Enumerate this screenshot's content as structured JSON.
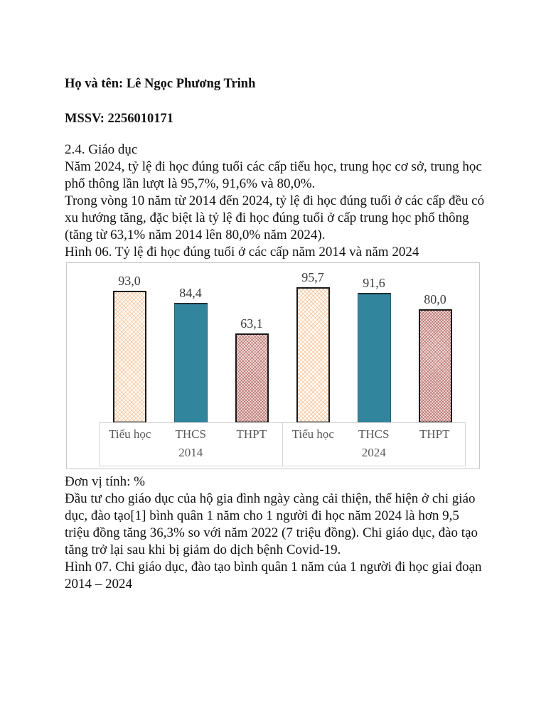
{
  "document": {
    "student_name_line": "Họ và tên: Lê Ngọc Phương Trinh",
    "student_id_line": "MSSV: 2256010171",
    "section_heading": "2.4. Giáo dục",
    "paragraph_1": "Năm 2024, tỷ lệ đi học đúng tuổi các cấp tiểu học, trung học cơ sở, trung học phổ thông lần lượt là 95,7%, 91,6% và 80,0%.",
    "paragraph_2": "Trong vòng 10 năm từ 2014 đến 2024, tỷ lệ đi học đúng tuổi ở các cấp đều có xu hướng tăng, đặc biệt là tỷ lệ đi học đúng tuổi ở cấp trung học phổ thông (tăng từ 63,1% năm 2014 lên 80,0% năm 2024).",
    "figure_06_caption": "Hình 06. Tỷ lệ đi học đúng tuổi ở các cấp năm 2014 và năm 2024",
    "unit_note": "Đơn vị tính: %",
    "paragraph_3": "Đầu tư cho giáo dục của hộ gia đình ngày càng cải thiện, thể hiện ở chi giáo dục, đào tạo[1] bình quân 1 năm cho 1 người đi học năm 2024 là hơn 9,5 triệu đồng tăng 36,3% so với năm 2022 (7 triệu đồng). Chi giáo dục, đào tạo tăng trở lại sau khi bị giảm do dịch bệnh Covid-19.",
    "figure_07_caption": "Hình 07. Chi giáo dục, đào tạo bình quân 1 năm của 1 người đi học giai đoạn 2014 – 2024"
  },
  "chart_data": {
    "type": "bar",
    "title": "Hình 06. Tỷ lệ đi học đúng tuổi ở các cấp năm 2014 và năm 2024",
    "unit": "%",
    "ylim": [
      0,
      100
    ],
    "grid": false,
    "legend": "none",
    "groups": [
      {
        "year": "2014",
        "categories": [
          "Tiểu học",
          "THCS",
          "THPT"
        ],
        "values": [
          93.0,
          84.4,
          63.1
        ],
        "value_labels": [
          "93,0",
          "84,4",
          "63,1"
        ]
      },
      {
        "year": "2024",
        "categories": [
          "Tiểu học",
          "THCS",
          "THPT"
        ],
        "values": [
          95.7,
          91.6,
          80.0
        ],
        "value_labels": [
          "95,7",
          "91,6",
          "80,0"
        ]
      }
    ],
    "bar_styles": [
      "cream-hatch",
      "teal-solid",
      "pink-hatch"
    ],
    "colors": {
      "teal_fill": "#31859c",
      "cream_hatch_line": "#f0a870",
      "cream_background": "#fffdf8",
      "pink_hatch_line": "#94342c",
      "pink_background": "#f4e0df",
      "bar_border": "#1a1a1a",
      "chart_border": "#c9c9c9",
      "axis_box_border": "#d6d6d6",
      "axis_text": "#595959",
      "value_label_text": "#3a3a3a"
    }
  }
}
